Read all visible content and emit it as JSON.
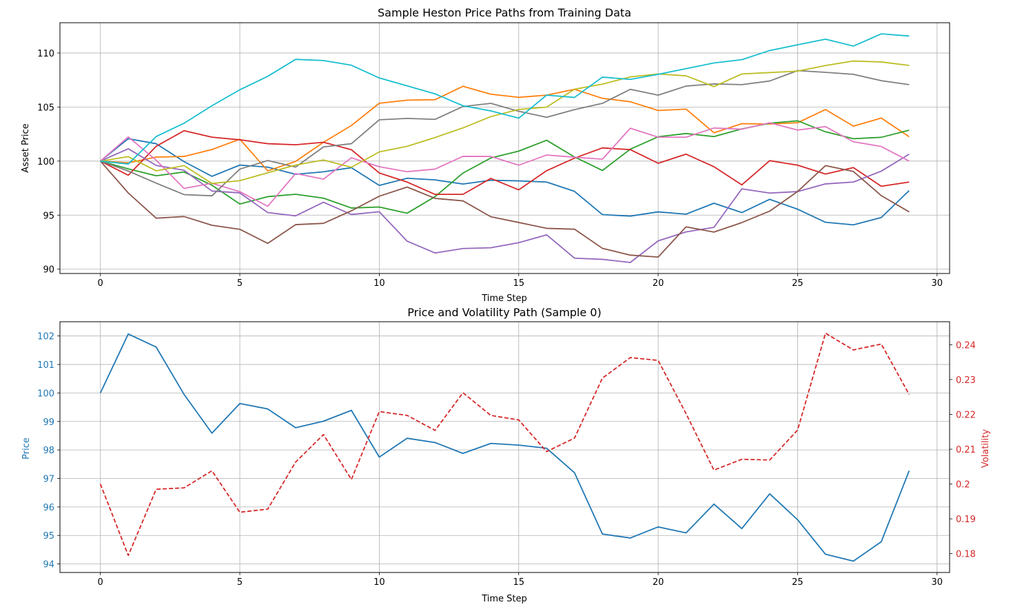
{
  "colors": {
    "tab10": [
      "#1f77b4",
      "#ff7f0e",
      "#2ca02c",
      "#d62728",
      "#9467bd",
      "#8c564b",
      "#e377c2",
      "#7f7f7f",
      "#bcbd22",
      "#17becf"
    ],
    "price": "#1f77b4",
    "volatility": "#d62728"
  },
  "chart_data": [
    {
      "type": "line",
      "title": "Sample Heston Price Paths from Training Data",
      "xlabel": "Time Step",
      "ylabel": "Asset Price",
      "xlim": [
        -1.45,
        30.45
      ],
      "ylim": [
        89.6,
        112.8
      ],
      "xticks": [
        0,
        5,
        10,
        15,
        20,
        25,
        30
      ],
      "yticks": [
        90,
        95,
        100,
        105,
        110
      ],
      "grid": true,
      "x": [
        0,
        1,
        2,
        3,
        4,
        5,
        6,
        7,
        8,
        9,
        10,
        11,
        12,
        13,
        14,
        15,
        16,
        17,
        18,
        19,
        20,
        21,
        22,
        23,
        24,
        25,
        26,
        27,
        28,
        29
      ],
      "series": [
        {
          "color_index": 0,
          "values": [
            100,
            102.07,
            101.61,
            99.95,
            98.59,
            99.63,
            99.44,
            98.78,
            99.01,
            99.39,
            97.75,
            98.41,
            98.26,
            97.88,
            98.23,
            98.17,
            98.06,
            97.2,
            95.05,
            94.91,
            95.3,
            95.09,
            96.1,
            95.24,
            96.46,
            95.55,
            94.34,
            94.1,
            94.78,
            97.27
          ]
        },
        {
          "color_index": 1,
          "values": [
            100,
            99.84,
            100.37,
            100.43,
            101.07,
            102.03,
            99.1,
            99.97,
            101.74,
            103.29,
            105.35,
            105.64,
            105.68,
            106.92,
            106.19,
            105.9,
            106.1,
            106.64,
            105.81,
            105.49,
            104.68,
            104.81,
            102.62,
            103.46,
            103.43,
            103.55,
            104.77,
            103.23,
            103.98,
            102.25
          ]
        },
        {
          "color_index": 2,
          "values": [
            100,
            99.28,
            98.64,
            98.99,
            97.77,
            96.03,
            96.71,
            96.93,
            96.57,
            95.66,
            95.75,
            95.18,
            96.71,
            98.89,
            100.29,
            100.92,
            101.93,
            100.38,
            99.13,
            101.1,
            102.25,
            102.55,
            102.27,
            102.98,
            103.5,
            103.73,
            102.71,
            102.07,
            102.2,
            102.86
          ]
        },
        {
          "color_index": 3,
          "values": [
            100,
            98.69,
            101.37,
            102.81,
            102.21,
            101.97,
            101.61,
            101.51,
            101.74,
            101.05,
            98.9,
            98.06,
            96.92,
            96.92,
            98.4,
            97.34,
            99.11,
            100.27,
            101.22,
            101.06,
            99.8,
            100.64,
            99.48,
            97.8,
            100.04,
            99.62,
            98.8,
            99.4,
            97.67,
            98.06
          ]
        },
        {
          "color_index": 4,
          "values": [
            100,
            101.14,
            99.6,
            99.15,
            97.23,
            97.06,
            95.24,
            94.93,
            96.19,
            95.06,
            95.31,
            92.59,
            91.5,
            91.91,
            91.98,
            92.45,
            93.18,
            91.02,
            90.91,
            90.62,
            92.62,
            93.45,
            93.87,
            97.43,
            97.04,
            97.18,
            97.89,
            98.06,
            99.07,
            100.64
          ]
        },
        {
          "color_index": 5,
          "values": [
            100,
            97.05,
            94.72,
            94.87,
            94.06,
            93.69,
            92.39,
            94.12,
            94.24,
            95.4,
            96.75,
            97.6,
            96.55,
            96.32,
            94.85,
            94.32,
            93.78,
            93.7,
            91.93,
            91.3,
            91.12,
            93.92,
            93.43,
            94.31,
            95.37,
            97.19,
            99.58,
            99.04,
            96.8,
            95.3
          ]
        },
        {
          "color_index": 6,
          "values": [
            100,
            102.24,
            100.08,
            97.47,
            97.95,
            97.17,
            95.82,
            98.85,
            98.33,
            100.31,
            99.48,
            99.02,
            99.26,
            100.44,
            100.43,
            99.62,
            100.56,
            100.36,
            100.17,
            103.04,
            102.21,
            102.21,
            103.06,
            102.95,
            103.54,
            102.87,
            103.19,
            101.79,
            101.35,
            100
          ]
        },
        {
          "color_index": 7,
          "values": [
            100,
            99.08,
            97.96,
            96.9,
            96.79,
            99.26,
            100.05,
            99.45,
            101.31,
            101.61,
            103.82,
            103.95,
            103.86,
            105.05,
            105.34,
            104.61,
            104.05,
            104.76,
            105.34,
            106.64,
            106.1,
            106.94,
            107.14,
            107.07,
            107.41,
            108.37,
            108.21,
            108.03,
            107.44,
            107.07
          ]
        },
        {
          "color_index": 8,
          "values": [
            100,
            100.41,
            99.1,
            99.58,
            97.93,
            98.19,
            98.92,
            99.63,
            100.1,
            99.43,
            100.85,
            101.37,
            102.18,
            103.07,
            104.12,
            104.78,
            104.99,
            106.65,
            107.12,
            107.79,
            108.06,
            107.89,
            106.89,
            108.06,
            108.19,
            108.32,
            108.84,
            109.26,
            109.17,
            108.85
          ]
        },
        {
          "color_index": 9,
          "values": [
            100,
            99.73,
            102.27,
            103.5,
            105.12,
            106.6,
            107.84,
            109.41,
            109.3,
            108.87,
            107.69,
            106.96,
            106.22,
            105.12,
            104.64,
            103.97,
            106.1,
            105.89,
            107.77,
            107.56,
            108.03,
            108.55,
            109.08,
            109.38,
            110.23,
            110.76,
            111.28,
            110.64,
            111.77,
            111.57
          ]
        }
      ]
    },
    {
      "type": "line",
      "title": "Price and Volatility Path (Sample 0)",
      "xlabel": "Time Step",
      "ylabel": "Price",
      "ylabel_right": "Volatility",
      "xlim": [
        -1.45,
        30.45
      ],
      "ylim": [
        93.7,
        102.5
      ],
      "ylim_right": [
        0.1746,
        0.2466
      ],
      "xticks": [
        0,
        5,
        10,
        15,
        20,
        25,
        30
      ],
      "yticks": [
        94,
        95,
        96,
        97,
        98,
        99,
        100,
        101,
        102
      ],
      "yticks_right": [
        0.18,
        0.19,
        0.2,
        0.21,
        0.22,
        0.23,
        0.24
      ],
      "grid": true,
      "x": [
        0,
        1,
        2,
        3,
        4,
        5,
        6,
        7,
        8,
        9,
        10,
        11,
        12,
        13,
        14,
        15,
        16,
        17,
        18,
        19,
        20,
        21,
        22,
        23,
        24,
        25,
        26,
        27,
        28,
        29
      ],
      "series": [
        {
          "axis": "left",
          "style": "solid",
          "values": [
            100,
            102.07,
            101.61,
            99.95,
            98.59,
            99.63,
            99.44,
            98.78,
            99.01,
            99.39,
            97.75,
            98.41,
            98.26,
            97.88,
            98.23,
            98.17,
            98.06,
            97.2,
            95.05,
            94.91,
            95.3,
            95.09,
            96.1,
            95.24,
            96.46,
            95.55,
            94.34,
            94.1,
            94.78,
            97.27
          ]
        },
        {
          "axis": "right",
          "style": "dashed",
          "values": [
            0.2,
            0.1795,
            0.1985,
            0.1989,
            0.2038,
            0.1919,
            0.1928,
            0.2063,
            0.2142,
            0.2013,
            0.2208,
            0.2197,
            0.2154,
            0.2262,
            0.2197,
            0.2184,
            0.2093,
            0.2132,
            0.2304,
            0.2363,
            0.2355,
            0.2202,
            0.204,
            0.2071,
            0.2069,
            0.2155,
            0.2433,
            0.2385,
            0.2402,
            0.2257
          ]
        }
      ]
    }
  ]
}
